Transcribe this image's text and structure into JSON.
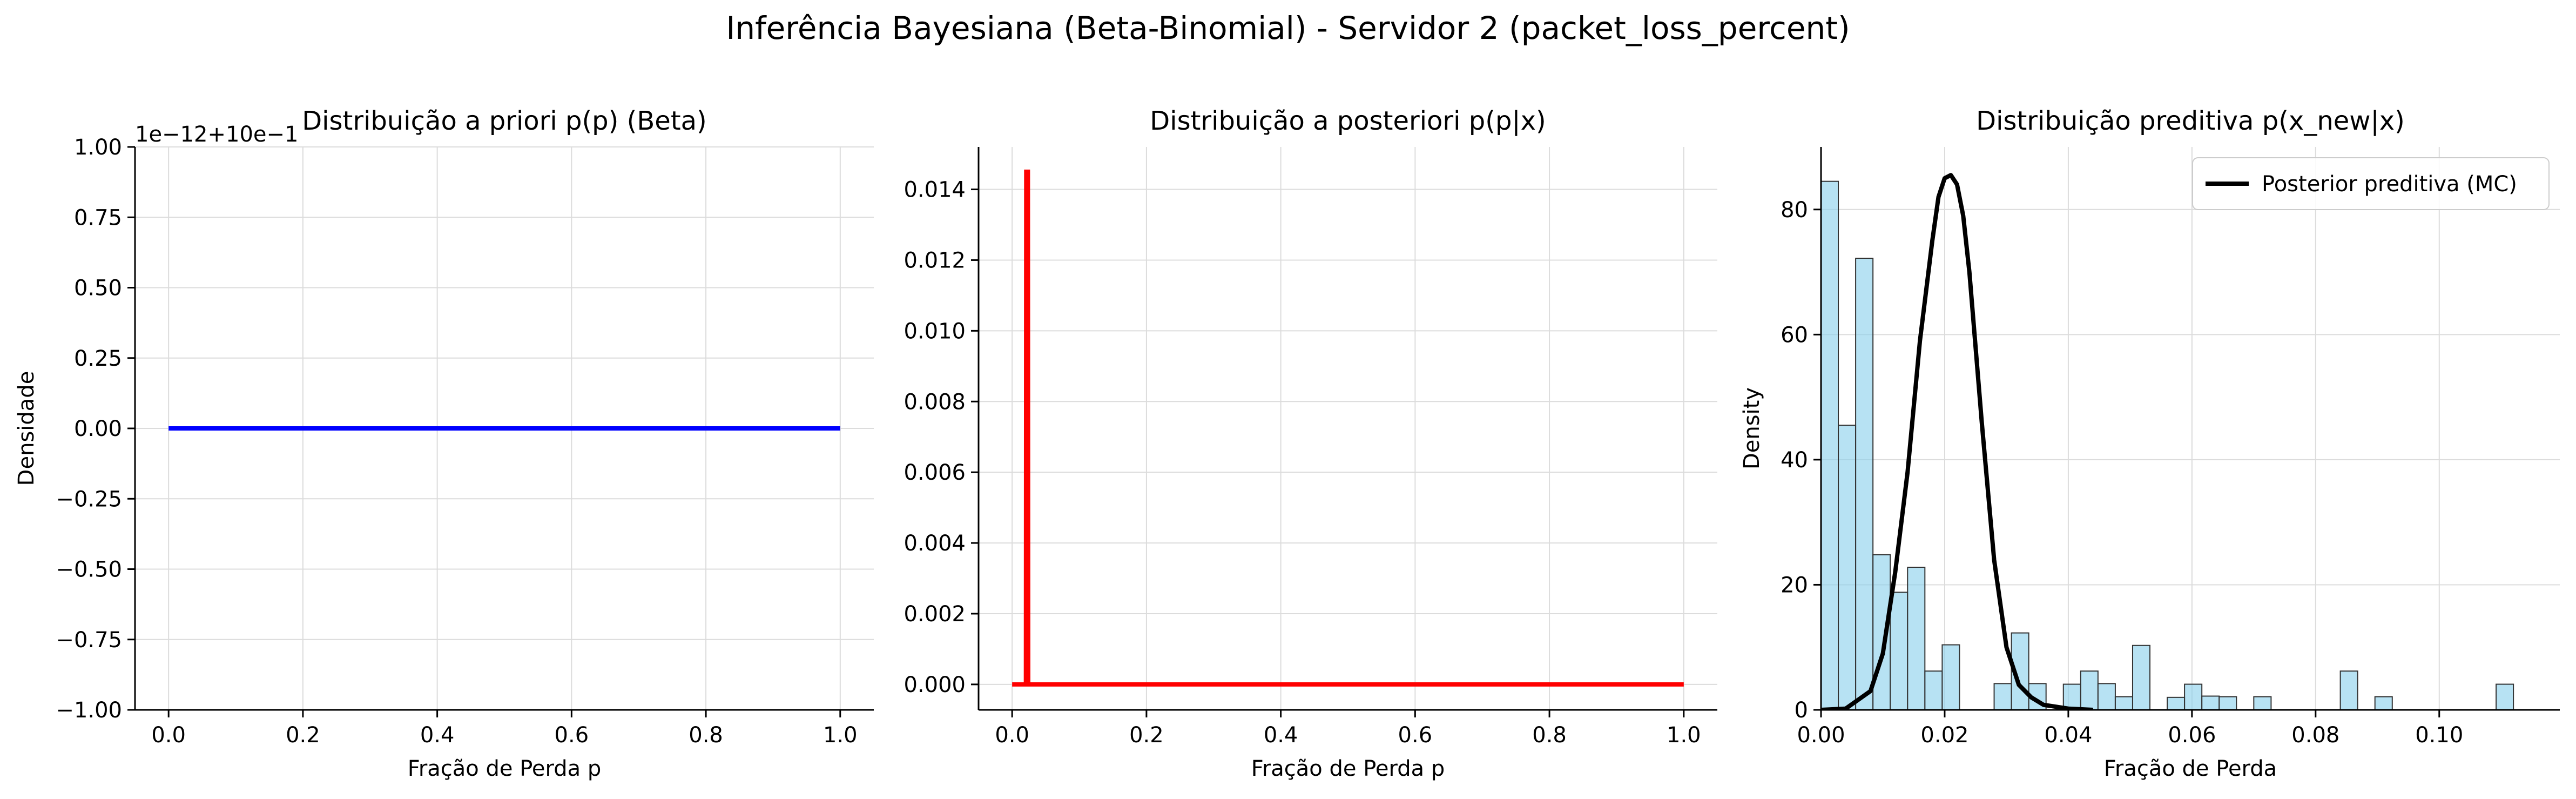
{
  "figure": {
    "suptitle": "Inferência Bayesiana (Beta-Binomial) - Servidor 2 (packet_loss_percent)"
  },
  "chart_data": [
    {
      "type": "line",
      "title": "Distribuição a priori p(p) (Beta)",
      "xlabel": "Fração de Perda p",
      "ylabel": "Densidade",
      "offset_text": "1e−12+10e−1",
      "xlim": [
        -0.05,
        1.05
      ],
      "ylim": [
        -1.0,
        1.0
      ],
      "xticks": [
        0.0,
        0.2,
        0.4,
        0.6,
        0.8,
        1.0
      ],
      "xtick_labels": [
        "0.0",
        "0.2",
        "0.4",
        "0.6",
        "0.8",
        "1.0"
      ],
      "yticks": [
        -1.0,
        -0.75,
        -0.5,
        -0.25,
        0.0,
        0.25,
        0.5,
        0.75,
        1.0
      ],
      "ytick_labels": [
        "−1.00",
        "−0.75",
        "−0.50",
        "−0.25",
        "0.00",
        "0.25",
        "0.50",
        "0.75",
        "1.00"
      ],
      "grid": true,
      "series": [
        {
          "color": "#0000ff",
          "x": [
            0.0,
            1.0
          ],
          "y": [
            0.0,
            0.0
          ]
        }
      ]
    },
    {
      "type": "line",
      "title": "Distribuição a posteriori p(p|x)",
      "xlabel": "Fração de Perda p",
      "ylabel": "",
      "xlim": [
        -0.05,
        1.05
      ],
      "ylim": [
        -0.00072,
        0.0152
      ],
      "xticks": [
        0.0,
        0.2,
        0.4,
        0.6,
        0.8,
        1.0
      ],
      "xtick_labels": [
        "0.0",
        "0.2",
        "0.4",
        "0.6",
        "0.8",
        "1.0"
      ],
      "yticks": [
        0.0,
        0.002,
        0.004,
        0.006,
        0.008,
        0.01,
        0.012,
        0.014
      ],
      "ytick_labels": [
        "0.000",
        "0.002",
        "0.004",
        "0.006",
        "0.008",
        "0.010",
        "0.012",
        "0.014"
      ],
      "grid": true,
      "series": [
        {
          "color": "#ff0000",
          "x": [
            0.0,
            0.0205,
            0.021,
            0.0235,
            0.024,
            1.0
          ],
          "y": [
            0.0,
            0.0,
            0.0145,
            0.0145,
            0.0,
            0.0
          ]
        }
      ]
    },
    {
      "type": "histogram+line",
      "title": "Distribuição preditiva p(x_new|x)",
      "xlabel": "Fração de Perda",
      "ylabel": "Density",
      "xlim": [
        0.0,
        0.1195
      ],
      "ylim": [
        0,
        90
      ],
      "xticks": [
        0.0,
        0.02,
        0.04,
        0.06,
        0.08,
        0.1
      ],
      "xtick_labels": [
        "0.00",
        "0.02",
        "0.04",
        "0.06",
        "0.08",
        "0.10"
      ],
      "yticks": [
        0,
        20,
        40,
        60,
        80
      ],
      "ytick_labels": [
        "0",
        "20",
        "40",
        "60",
        "80"
      ],
      "grid": true,
      "legend": {
        "position": "top-right",
        "label": "Posterior preditiva (MC)"
      },
      "histogram": {
        "bin_start": 0.0,
        "bin_width": 0.0028,
        "color": "#87ceeb",
        "values": [
          84.5,
          45.5,
          72.2,
          24.8,
          18.8,
          22.8,
          6.2,
          10.4,
          0,
          0,
          4.2,
          12.3,
          4.2,
          0,
          4.1,
          6.2,
          4.2,
          2.1,
          10.3,
          0,
          2.0,
          4.1,
          2.2,
          2.1,
          0,
          2.1,
          0,
          0,
          0,
          0,
          6.2,
          0,
          2.1,
          0,
          0,
          0,
          0,
          0,
          0,
          4.1
        ]
      },
      "curve": {
        "color": "#000000",
        "x": [
          0.0,
          0.004,
          0.008,
          0.01,
          0.012,
          0.014,
          0.016,
          0.018,
          0.019,
          0.02,
          0.021,
          0.022,
          0.023,
          0.024,
          0.026,
          0.028,
          0.03,
          0.032,
          0.034,
          0.036,
          0.04,
          0.044
        ],
        "y": [
          0.0,
          0.2,
          3.0,
          9.0,
          22.0,
          38.0,
          59.0,
          75.0,
          82.0,
          85.0,
          85.5,
          84.0,
          79.0,
          70.0,
          46.0,
          24.0,
          10.0,
          4.0,
          2.0,
          0.8,
          0.2,
          0.0
        ]
      }
    }
  ]
}
